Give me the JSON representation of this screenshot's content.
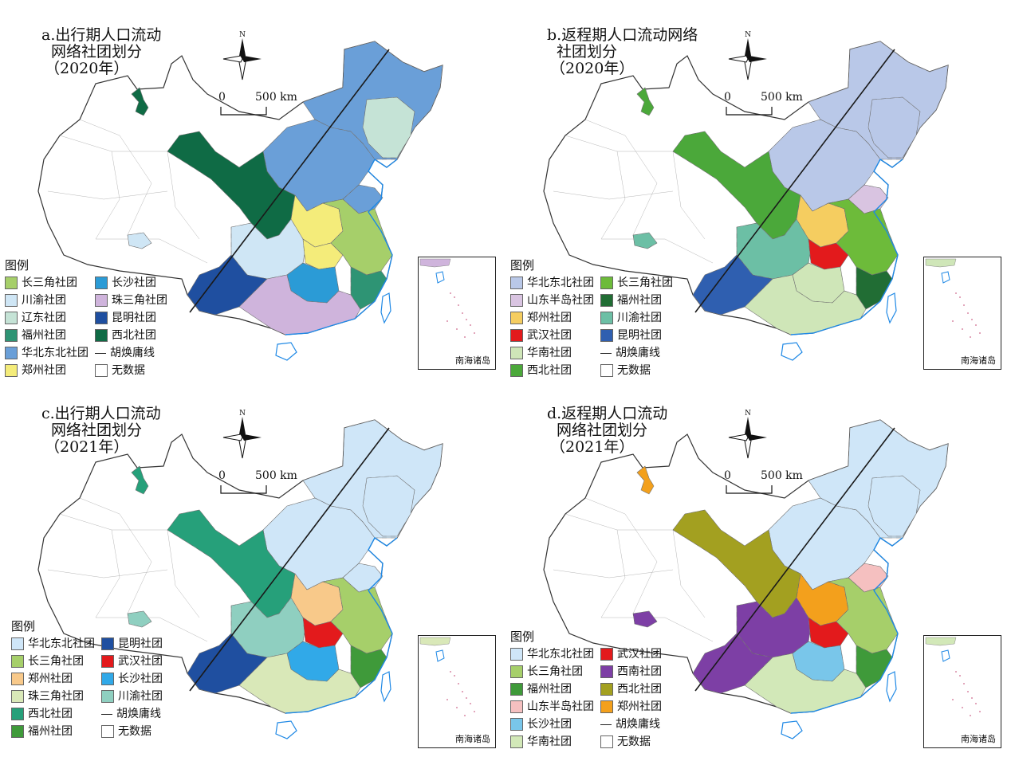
{
  "scale": {
    "zero": "0",
    "dist": "500 km"
  },
  "north": "N",
  "inset_label": "南海诸岛",
  "colors": {
    "outline": "#7d7d7d",
    "coast": "#1e88e5",
    "huline": "#1a1a1a",
    "nodata": "#ffffff"
  },
  "panels": [
    {
      "title": [
        "a.出行期人口流动",
        "网络社团划分",
        "（2020年）"
      ],
      "legend_title": "图例",
      "legend_col1": [
        {
          "label": "长三角社团",
          "color": "#a6cf6a"
        },
        {
          "label": "川渝社团",
          "color": "#cfe6f5"
        },
        {
          "label": "辽东社团",
          "color": "#c5e3d6"
        },
        {
          "label": "福州社团",
          "color": "#2e9474"
        },
        {
          "label": "华北东北社团",
          "color": "#6a9fd8"
        },
        {
          "label": "郑州社团",
          "color": "#f4ec7a"
        }
      ],
      "legend_col2": [
        {
          "label": "长沙社团",
          "color": "#2b9bd6"
        },
        {
          "label": "珠三角社团",
          "color": "#cfb4dc"
        },
        {
          "label": "昆明社团",
          "color": "#1f4fa0"
        },
        {
          "label": "西北社团",
          "color": "#0f6b45"
        },
        {
          "label": "胡焕庸线",
          "color": "line"
        },
        {
          "label": "无数据",
          "color": "#ffffff"
        }
      ],
      "regions": {
        "northeast": "#6a9fd8",
        "north": "#6a9fd8",
        "liaodong": "#c5e3d6",
        "northwest": "#0f6b45",
        "xinjiang_spot": "#0f6b45",
        "chuanyu": "#cfe6f5",
        "tibet_spot": "#cfe6f5",
        "zhengzhou": "#f4ec7a",
        "wuhan": "#f4ec7a",
        "changsha": "#2b9bd6",
        "yangtze": "#a6cf6a",
        "fujian": "#2e9474",
        "south": "#cfb4dc",
        "kunming": "#1f4fa0",
        "shandong": "#6a9fd8"
      }
    },
    {
      "title": [
        "b.返程期人口流动网络",
        "社团划分",
        "（2020年）"
      ],
      "legend_title": "图例",
      "legend_col1": [
        {
          "label": "华北东北社团",
          "color": "#b9c8e8"
        },
        {
          "label": "山东半岛社团",
          "color": "#d9c4e1"
        },
        {
          "label": "郑州社团",
          "color": "#f5cd60"
        },
        {
          "label": "武汉社团",
          "color": "#e31a1c"
        },
        {
          "label": "华南社团",
          "color": "#cfe6b8"
        },
        {
          "label": "西北社团",
          "color": "#4ba83a"
        }
      ],
      "legend_col2": [
        {
          "label": "长三角社团",
          "color": "#6dbb3a"
        },
        {
          "label": "福州社团",
          "color": "#216d34"
        },
        {
          "label": "川渝社团",
          "color": "#6cbfa5"
        },
        {
          "label": "昆明社团",
          "color": "#2f5fb0"
        },
        {
          "label": "胡焕庸线",
          "color": "line"
        },
        {
          "label": "无数据",
          "color": "#ffffff"
        }
      ],
      "regions": {
        "northeast": "#b9c8e8",
        "north": "#b9c8e8",
        "liaodong": "#b9c8e8",
        "northwest": "#4ba83a",
        "xinjiang_spot": "#4ba83a",
        "chuanyu": "#6cbfa5",
        "tibet_spot": "#6cbfa5",
        "zhengzhou": "#f5cd60",
        "wuhan": "#e31a1c",
        "changsha": "#cfe6b8",
        "yangtze": "#6dbb3a",
        "fujian": "#216d34",
        "south": "#cfe6b8",
        "kunming": "#2f5fb0",
        "shandong": "#d9c4e1"
      }
    },
    {
      "title": [
        "c.出行期人口流动",
        "网络社团划分",
        "（2021年）"
      ],
      "legend_title": "图例",
      "legend_col1": [
        {
          "label": "华北东北社团",
          "color": "#cfe6f8"
        },
        {
          "label": "长三角社团",
          "color": "#a6cf6a"
        },
        {
          "label": "郑州社团",
          "color": "#f8c98a"
        },
        {
          "label": "珠三角社团",
          "color": "#d9e8b8"
        },
        {
          "label": "西北社团",
          "color": "#26a07a"
        },
        {
          "label": "福州社团",
          "color": "#3f9a3a"
        }
      ],
      "legend_col2": [
        {
          "label": "昆明社团",
          "color": "#1f4fa0"
        },
        {
          "label": "武汉社团",
          "color": "#e31a1c"
        },
        {
          "label": "长沙社团",
          "color": "#31a9e8"
        },
        {
          "label": "川渝社团",
          "color": "#8fcfc0"
        },
        {
          "label": "胡焕庸线",
          "color": "line"
        },
        {
          "label": "无数据",
          "color": "#ffffff"
        }
      ],
      "regions": {
        "northeast": "#cfe6f8",
        "north": "#cfe6f8",
        "liaodong": "#cfe6f8",
        "northwest": "#26a07a",
        "xinjiang_spot": "#26a07a",
        "chuanyu": "#8fcfc0",
        "tibet_spot": "#8fcfc0",
        "zhengzhou": "#f8c98a",
        "wuhan": "#e31a1c",
        "changsha": "#31a9e8",
        "yangtze": "#a6cf6a",
        "fujian": "#3f9a3a",
        "south": "#d9e8b8",
        "kunming": "#1f4fa0",
        "shandong": "#cfe6f8"
      }
    },
    {
      "title": [
        "d.返程期人口流动",
        "网络社团划分",
        "（2021年）"
      ],
      "legend_title": "图例",
      "legend_col1": [
        {
          "label": "华北东北社团",
          "color": "#cfe6f8"
        },
        {
          "label": "长三角社团",
          "color": "#a6cf6a"
        },
        {
          "label": "福州社团",
          "color": "#3f9a3a"
        },
        {
          "label": "山东半岛社团",
          "color": "#f5c0c0"
        },
        {
          "label": "长沙社团",
          "color": "#79c6ea"
        },
        {
          "label": "华南社团",
          "color": "#d2e8b8"
        }
      ],
      "legend_col2": [
        {
          "label": "武汉社团",
          "color": "#e31a1c"
        },
        {
          "label": "西南社团",
          "color": "#7d3fa5"
        },
        {
          "label": "西北社团",
          "color": "#a3a020"
        },
        {
          "label": "郑州社团",
          "color": "#f3a01c"
        },
        {
          "label": "胡焕庸线",
          "color": "line"
        },
        {
          "label": "无数据",
          "color": "#ffffff"
        }
      ],
      "regions": {
        "northeast": "#cfe6f8",
        "north": "#cfe6f8",
        "liaodong": "#cfe6f8",
        "northwest": "#a3a020",
        "xinjiang_spot": "#f3a01c",
        "chuanyu": "#7d3fa5",
        "tibet_spot": "#7d3fa5",
        "zhengzhou": "#f3a01c",
        "wuhan": "#e31a1c",
        "changsha": "#79c6ea",
        "yangtze": "#a6cf6a",
        "fujian": "#3f9a3a",
        "south": "#d2e8b8",
        "kunming": "#7d3fa5",
        "shandong": "#f5c0c0"
      }
    }
  ]
}
